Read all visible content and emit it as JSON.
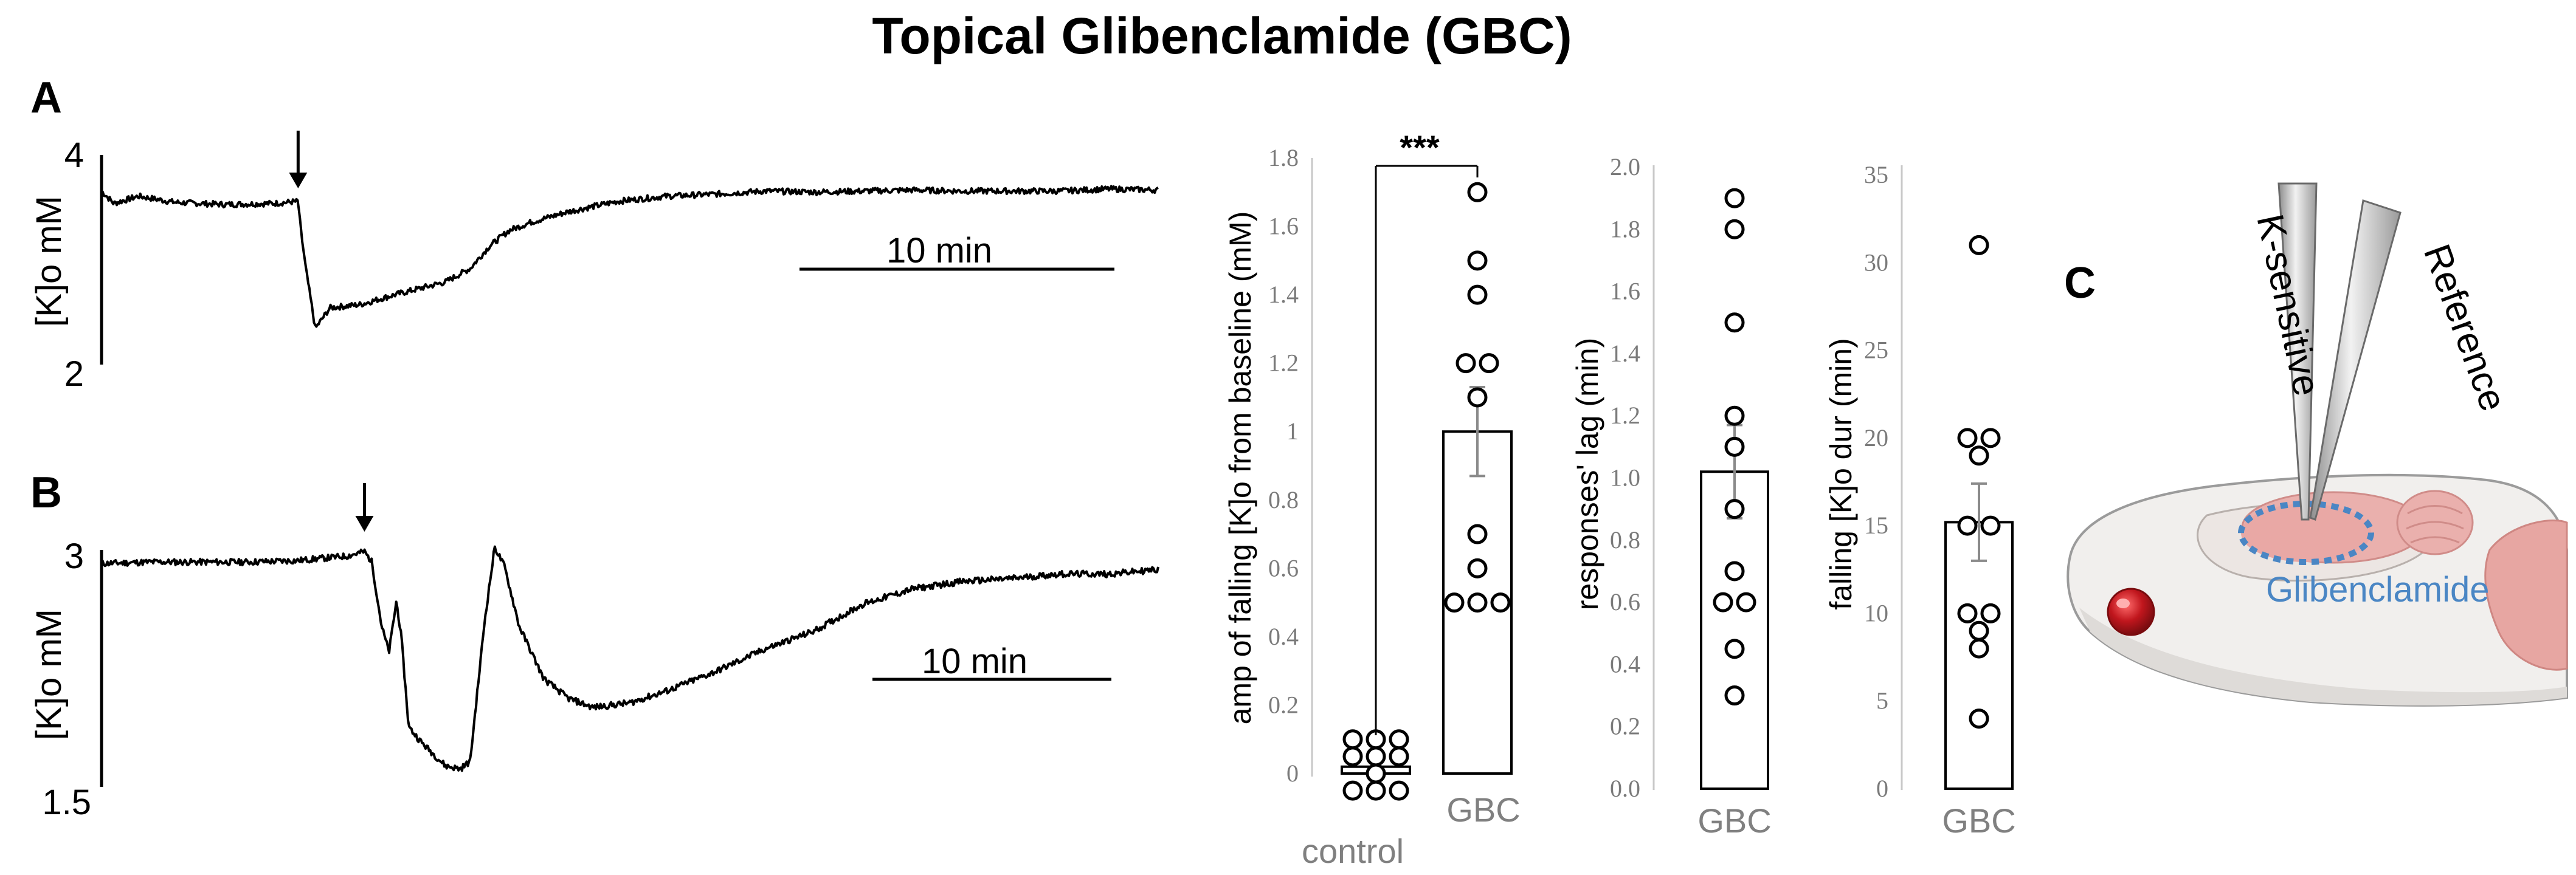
{
  "title": "Topical Glibenclamide (GBC)",
  "panels": {
    "a_letter": "A",
    "b_letter": "B",
    "c_letter": "C"
  },
  "trace_a": {
    "ylabel": "[K]o mM",
    "y_top": "4",
    "y_bottom": "2",
    "scalebar": "10 min"
  },
  "trace_b": {
    "ylabel": "[K]o mM",
    "y_top": "3",
    "y_bottom": "1.5",
    "scalebar": "10 min"
  },
  "schematic": {
    "pipette_1": "K-sensitive",
    "pipette_2": "Reference",
    "drug": "Glibenclamide"
  },
  "colors": {
    "drug_text": "#4a86c4",
    "brain": "#e8a9a6",
    "eye": "#b3151b",
    "tick_text": "#7a7a7a"
  },
  "chart_data": [
    {
      "type": "line",
      "title": "",
      "xlabel": "",
      "ylabel": "[K]o mM",
      "ylim": [
        2,
        4
      ],
      "x_unit": "min",
      "arrow_at": 8.0,
      "series": [
        {
          "x": [
            0,
            0.5,
            1.5,
            3,
            5,
            7,
            8.0,
            8.1,
            8.3,
            8.7,
            9.3,
            10.5,
            12,
            14,
            15,
            15.8,
            16.6,
            17.5,
            19,
            21,
            23,
            25,
            27,
            29,
            31,
            33,
            35,
            37,
            39,
            41,
            43
          ],
          "y": [
            3.68,
            3.56,
            3.63,
            3.57,
            3.55,
            3.56,
            3.58,
            3.32,
            2.95,
            2.35,
            2.55,
            2.58,
            2.68,
            2.8,
            2.93,
            3.15,
            3.3,
            3.38,
            3.48,
            3.58,
            3.63,
            3.65,
            3.68,
            3.67,
            3.68,
            3.69,
            3.68,
            3.68,
            3.68,
            3.7,
            3.69
          ]
        }
      ]
    },
    {
      "type": "line",
      "title": "",
      "xlabel": "",
      "ylabel": "[K]o mM",
      "ylim": [
        1.5,
        3
      ],
      "x_unit": "min",
      "arrow_at": 10.7,
      "series": [
        {
          "x": [
            0,
            2,
            4,
            6,
            8,
            10,
            10.7,
            11.0,
            11.4,
            11.7,
            12.0,
            12.2,
            12.5,
            13.0,
            13.5,
            14.0,
            14.6,
            15.0,
            15.6,
            16.0,
            16.4,
            17.0,
            18.0,
            19.0,
            20.0,
            21.5,
            23.0,
            25.0,
            27.0,
            29.0,
            31.0,
            33.0,
            35.0,
            37.0,
            39.0,
            41.0,
            43.0
          ],
          "y": [
            2.97,
            2.98,
            2.98,
            2.98,
            2.99,
            3.02,
            3.05,
            2.98,
            2.55,
            2.38,
            2.72,
            2.48,
            1.88,
            1.78,
            1.7,
            1.62,
            1.6,
            1.65,
            2.6,
            3.08,
            2.95,
            2.55,
            2.2,
            2.07,
            2.01,
            2.04,
            2.12,
            2.25,
            2.4,
            2.52,
            2.7,
            2.8,
            2.85,
            2.87,
            2.9,
            2.9,
            2.93
          ]
        }
      ]
    },
    {
      "type": "bar",
      "title": "",
      "xlabel": "",
      "ylabel": "amp of falling [K]o from baseline (mM)",
      "ylim": [
        0,
        1.8
      ],
      "yticks": [
        "0",
        "0.2",
        "0.4",
        "0.6",
        "0.8",
        "1",
        "1.2",
        "1.4",
        "1.6",
        "1.8"
      ],
      "categories": [
        "control",
        "GBC"
      ],
      "values": [
        0.02,
        1.0
      ],
      "error": [
        0.03,
        0.13
      ],
      "points": [
        [
          0.1,
          0.1,
          0.1,
          0.05,
          0.05,
          0.05,
          -0.05,
          -0.05,
          -0.05,
          0.0
        ],
        [
          1.7,
          1.5,
          1.4,
          1.2,
          1.2,
          1.1,
          0.7,
          0.6,
          0.5,
          0.5,
          0.5
        ]
      ],
      "annotation": "***"
    },
    {
      "type": "bar",
      "title": "",
      "xlabel": "",
      "ylabel": "responses' lag (min)",
      "ylim": [
        0,
        2.0
      ],
      "yticks": [
        "0.0",
        "0.2",
        "0.4",
        "0.6",
        "0.8",
        "1.0",
        "1.2",
        "1.4",
        "1.6",
        "1.8",
        "2.0"
      ],
      "categories": [
        "GBC"
      ],
      "values": [
        1.02
      ],
      "error": [
        0.15
      ],
      "points": [
        [
          1.9,
          1.8,
          1.5,
          1.2,
          1.1,
          0.9,
          0.7,
          0.6,
          0.6,
          0.45,
          0.3
        ]
      ]
    },
    {
      "type": "bar",
      "title": "",
      "xlabel": "",
      "ylabel": "falling [K]o dur (min)",
      "ylim": [
        0,
        35
      ],
      "yticks": [
        "0",
        "5",
        "10",
        "15",
        "20",
        "25",
        "30",
        "35"
      ],
      "categories": [
        "GBC"
      ],
      "values": [
        15.2
      ],
      "error": [
        2.2
      ],
      "points": [
        [
          31,
          20,
          20,
          19,
          15,
          15,
          10,
          10,
          9,
          8,
          4
        ]
      ]
    }
  ]
}
